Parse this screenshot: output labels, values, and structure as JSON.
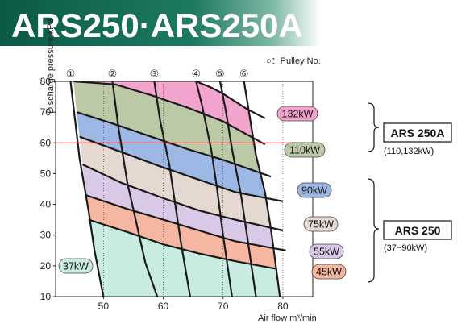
{
  "banner": {
    "title": "ARS250·ARS250A"
  },
  "pulley_note": "○：Pulley No.",
  "chart_data": {
    "type": "area",
    "xlabel": "Air flow  m³/min",
    "ylabel": "Discharge pressure kPa",
    "xlim": [
      42,
      85
    ],
    "ylim": [
      10,
      80
    ],
    "xticks": [
      50,
      60,
      70,
      80
    ],
    "yticks": [
      10,
      20,
      30,
      40,
      50,
      60,
      70,
      80
    ],
    "reference_line": {
      "y": 60,
      "color": "#e83030"
    },
    "pulley_numbers": [
      "①",
      "②",
      "③",
      "④",
      "⑤",
      "⑥"
    ],
    "pulley_lines": [
      {
        "label": "①",
        "points": [
          [
            44.5,
            80
          ],
          [
            46,
            55
          ],
          [
            47.5,
            38
          ],
          [
            48.5,
            25
          ],
          [
            50,
            10
          ]
        ]
      },
      {
        "label": "②",
        "points": [
          [
            51.5,
            80
          ],
          [
            52.5,
            65
          ],
          [
            54,
            47
          ],
          [
            55.5,
            34
          ],
          [
            57,
            21
          ],
          [
            59,
            10
          ]
        ]
      },
      {
        "label": "③",
        "points": [
          [
            58.5,
            80
          ],
          [
            59.5,
            67
          ],
          [
            61,
            53
          ],
          [
            62,
            40
          ],
          [
            63,
            27
          ],
          [
            64.5,
            10
          ]
        ]
      },
      {
        "label": "④",
        "points": [
          [
            65.5,
            80
          ],
          [
            66.5,
            72
          ],
          [
            68,
            58
          ],
          [
            69,
            45
          ],
          [
            70,
            30
          ],
          [
            71.5,
            10
          ]
        ]
      },
      {
        "label": "⑤",
        "points": [
          [
            69.5,
            80
          ],
          [
            70.5,
            70
          ],
          [
            71.5,
            58
          ],
          [
            73,
            43
          ],
          [
            74,
            30
          ],
          [
            75.5,
            10
          ]
        ]
      },
      {
        "label": "⑥",
        "points": [
          [
            73.5,
            80
          ],
          [
            74.5,
            68
          ],
          [
            75.5,
            56
          ],
          [
            77,
            44
          ],
          [
            78,
            32
          ],
          [
            79.5,
            10
          ]
        ]
      }
    ],
    "series": [
      {
        "name": "37kW",
        "color": "#c9ece2",
        "points": [
          [
            47.5,
            35
          ],
          [
            54,
            31
          ],
          [
            60,
            27
          ],
          [
            66,
            24
          ],
          [
            72,
            21.5
          ],
          [
            79,
            19
          ]
        ]
      },
      {
        "name": "45kW",
        "color": "#f5b6a2",
        "points": [
          [
            47,
            43
          ],
          [
            54,
            38.5
          ],
          [
            60,
            35
          ],
          [
            66,
            31.5
          ],
          [
            72,
            28
          ],
          [
            80.5,
            25
          ]
        ]
      },
      {
        "name": "55kW",
        "color": "#d9c8e6",
        "points": [
          [
            46.5,
            53
          ],
          [
            53,
            47
          ],
          [
            60,
            42
          ],
          [
            66,
            38
          ],
          [
            72,
            35
          ],
          [
            80,
            31.5
          ]
        ]
      },
      {
        "name": "75kW",
        "color": "#e4d8d0",
        "points": [
          [
            46,
            62
          ],
          [
            53,
            57
          ],
          [
            60,
            52
          ],
          [
            66,
            48
          ],
          [
            72,
            44
          ],
          [
            80,
            41
          ]
        ]
      },
      {
        "name": "90kW",
        "color": "#9db8e5",
        "points": [
          [
            45.5,
            70
          ],
          [
            52,
            66
          ],
          [
            58,
            62
          ],
          [
            64,
            58
          ],
          [
            70,
            54.5
          ],
          [
            78,
            49
          ]
        ]
      },
      {
        "name": "110kW",
        "color": "#bcc9a6",
        "points": [
          [
            45,
            80
          ],
          [
            52,
            79
          ],
          [
            58,
            75.5
          ],
          [
            64,
            71.5
          ],
          [
            70,
            67
          ],
          [
            77,
            59.5
          ]
        ]
      },
      {
        "name": "132kW",
        "color": "#f2a4cf",
        "points": [
          [
            65.5,
            80
          ],
          [
            68,
            78
          ],
          [
            70,
            76
          ],
          [
            72,
            73.5
          ],
          [
            74,
            71
          ],
          [
            77,
            68
          ]
        ]
      }
    ]
  },
  "model_groups": [
    {
      "name": "ARS 250A",
      "range": "(110,132kW)"
    },
    {
      "name": "ARS 250",
      "range": "(37~90kW)"
    }
  ]
}
